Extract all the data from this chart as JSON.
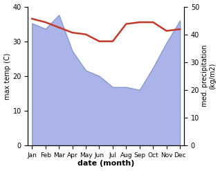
{
  "months": [
    "Jan",
    "Feb",
    "Mar",
    "Apr",
    "May",
    "Jun",
    "Jul",
    "Aug",
    "Sep",
    "Oct",
    "Nov",
    "Dec"
  ],
  "max_temp": [
    36.5,
    35.5,
    34.0,
    32.5,
    32.0,
    30.0,
    30.0,
    35.0,
    35.5,
    35.5,
    33.0,
    33.5
  ],
  "precipitation": [
    44,
    42,
    47,
    34,
    27,
    25,
    21,
    21,
    20,
    28,
    37,
    45
  ],
  "temp_color": "#c0392b",
  "precip_color": "#aab4e8",
  "precip_edge_color": "#8899cc",
  "bg_color": "#ffffff",
  "xlabel": "date (month)",
  "ylabel_left": "max temp (C)",
  "ylabel_right": "med. precipitation\n(kg/m2)",
  "ylim_left": [
    0,
    40
  ],
  "ylim_right": [
    0,
    50
  ],
  "yticks_left": [
    0,
    10,
    20,
    30,
    40
  ],
  "yticks_right": [
    0,
    10,
    20,
    30,
    40,
    50
  ]
}
